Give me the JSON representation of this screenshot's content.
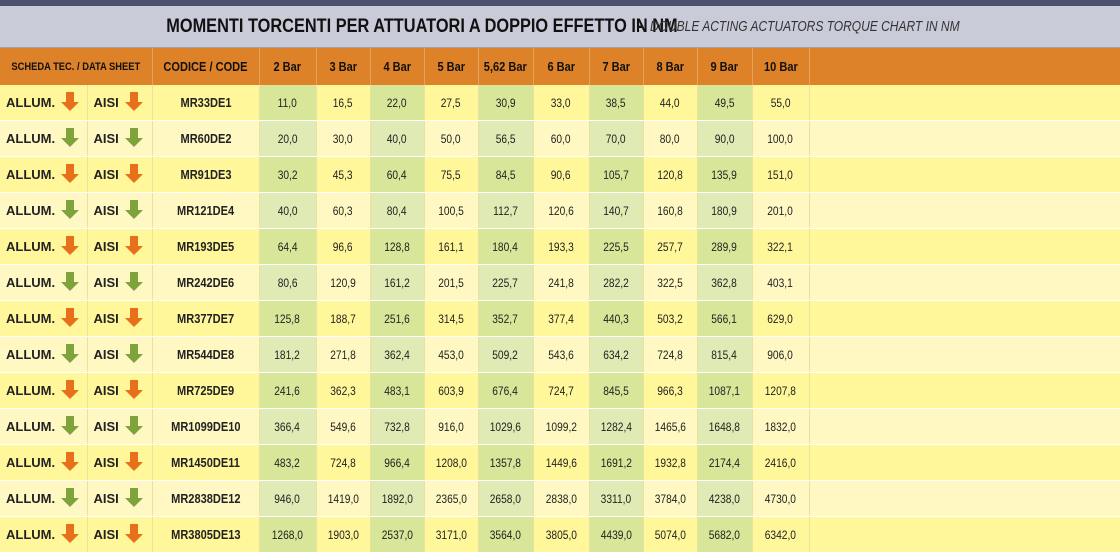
{
  "title": {
    "main": "MOMENTI TORCENTI PER ATTUATORI A DOPPIO EFFETTO IN NM",
    "separator": "-",
    "sub": "DOUBLE ACTING ACTUATORS TORQUE CHART IN NM"
  },
  "headers": {
    "sheet": "SCHEDA TEC. / DATA SHEET",
    "code": "CODICE / CODE",
    "pressures": [
      "2 Bar",
      "3 Bar",
      "4 Bar",
      "5 Bar",
      "5,62 Bar",
      "6 Bar",
      "7 Bar",
      "8 Bar",
      "9 Bar",
      "10 Bar"
    ]
  },
  "labels": {
    "allum": "ALLUM.",
    "aisi": "AISI"
  },
  "colors": {
    "orange_arrow": "#e8701c",
    "green_arrow": "#7ea23c",
    "header": "#dd8228"
  },
  "rows": [
    {
      "code": "MR33DE1",
      "arrow": "orange-download-icon",
      "values": [
        "11,0",
        "16,5",
        "22,0",
        "27,5",
        "30,9",
        "33,0",
        "38,5",
        "44,0",
        "49,5",
        "55,0"
      ]
    },
    {
      "code": "MR60DE2",
      "arrow": "green-download-icon",
      "values": [
        "20,0",
        "30,0",
        "40,0",
        "50,0",
        "56,5",
        "60,0",
        "70,0",
        "80,0",
        "90,0",
        "100,0"
      ]
    },
    {
      "code": "MR91DE3",
      "arrow": "orange-download-icon",
      "values": [
        "30,2",
        "45,3",
        "60,4",
        "75,5",
        "84,5",
        "90,6",
        "105,7",
        "120,8",
        "135,9",
        "151,0"
      ]
    },
    {
      "code": "MR121DE4",
      "arrow": "green-download-icon",
      "values": [
        "40,0",
        "60,3",
        "80,4",
        "100,5",
        "112,7",
        "120,6",
        "140,7",
        "160,8",
        "180,9",
        "201,0"
      ]
    },
    {
      "code": "MR193DE5",
      "arrow": "orange-download-icon",
      "values": [
        "64,4",
        "96,6",
        "128,8",
        "161,1",
        "180,4",
        "193,3",
        "225,5",
        "257,7",
        "289,9",
        "322,1"
      ]
    },
    {
      "code": "MR242DE6",
      "arrow": "green-download-icon",
      "values": [
        "80,6",
        "120,9",
        "161,2",
        "201,5",
        "225,7",
        "241,8",
        "282,2",
        "322,5",
        "362,8",
        "403,1"
      ]
    },
    {
      "code": "MR377DE7",
      "arrow": "orange-download-icon",
      "values": [
        "125,8",
        "188,7",
        "251,6",
        "314,5",
        "352,7",
        "377,4",
        "440,3",
        "503,2",
        "566,1",
        "629,0"
      ]
    },
    {
      "code": "MR544DE8",
      "arrow": "green-download-icon",
      "values": [
        "181,2",
        "271,8",
        "362,4",
        "453,0",
        "509,2",
        "543,6",
        "634,2",
        "724,8",
        "815,4",
        "906,0"
      ]
    },
    {
      "code": "MR725DE9",
      "arrow": "orange-download-icon",
      "values": [
        "241,6",
        "362,3",
        "483,1",
        "603,9",
        "676,4",
        "724,7",
        "845,5",
        "966,3",
        "1087,1",
        "1207,8"
      ]
    },
    {
      "code": "MR1099DE10",
      "arrow": "green-download-icon",
      "values": [
        "366,4",
        "549,6",
        "732,8",
        "916,0",
        "1029,6",
        "1099,2",
        "1282,4",
        "1465,6",
        "1648,8",
        "1832,0"
      ]
    },
    {
      "code": "MR1450DE11",
      "arrow": "orange-download-icon",
      "values": [
        "483,2",
        "724,8",
        "966,4",
        "1208,0",
        "1357,8",
        "1449,6",
        "1691,2",
        "1932,8",
        "2174,4",
        "2416,0"
      ]
    },
    {
      "code": "MR2838DE12",
      "arrow": "green-download-icon",
      "values": [
        "946,0",
        "1419,0",
        "1892,0",
        "2365,0",
        "2658,0",
        "2838,0",
        "3311,0",
        "3784,0",
        "4238,0",
        "4730,0"
      ]
    },
    {
      "code": "MR3805DE13",
      "arrow": "orange-download-icon",
      "values": [
        "1268,0",
        "1903,0",
        "2537,0",
        "3171,0",
        "3564,0",
        "3805,0",
        "4439,0",
        "5074,0",
        "5682,0",
        "6342,0"
      ]
    }
  ]
}
